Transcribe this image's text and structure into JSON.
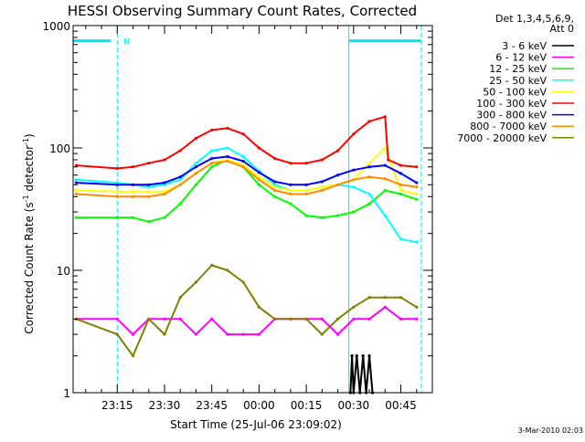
{
  "chart_data": {
    "type": "line",
    "title": "HESSI Observing Summary Count Rates, Corrected",
    "xlabel": "Start Time (25-Jul-06 23:09:02)",
    "ylabel_main": "Corrected Count Rate (s",
    "ylabel_exp1": "-1",
    "ylabel_mid": " detector",
    "ylabel_exp2": "-1",
    "ylabel_end": ")",
    "yscale": "log",
    "ylim": [
      1,
      1000
    ],
    "xlim_minutes": [
      -14,
      100
    ],
    "xticks": [
      {
        "label": "23:15",
        "min": 0
      },
      {
        "label": "23:30",
        "min": 15
      },
      {
        "label": "23:45",
        "min": 30
      },
      {
        "label": "00:00",
        "min": 45
      },
      {
        "label": "00:15",
        "min": 60
      },
      {
        "label": "00:30",
        "min": 75
      },
      {
        "label": "00:45",
        "min": 90
      }
    ],
    "yticks": [
      {
        "label": "1",
        "v": 1
      },
      {
        "label": "10",
        "v": 10
      },
      {
        "label": "100",
        "v": 100
      },
      {
        "label": "1000",
        "v": 1000
      }
    ],
    "legend_header": [
      "Det 1,3,4,5,6,9,",
      "Att 0"
    ],
    "legend_position": "right",
    "footer_date": "3-Mar-2010 02:03",
    "flag_label": "N",
    "vlines_minutes": [
      -14,
      0,
      73.5,
      96.5
    ],
    "flag_bars": [
      {
        "from": -14,
        "to": -2,
        "v": 750
      },
      {
        "from": 73.5,
        "to": 96.5,
        "v": 750
      }
    ],
    "series": [
      {
        "name": "3 - 6 keV",
        "color": "#000000",
        "x": [
          74,
          74.5,
          75,
          76,
          77,
          78,
          79,
          80,
          81
        ],
        "y": [
          1,
          2,
          1,
          2,
          1,
          2,
          1,
          2,
          1
        ]
      },
      {
        "name": "6 - 12 keV",
        "color": "#ff00ff",
        "x": [
          -13,
          0,
          5,
          10,
          15,
          20,
          25,
          30,
          35,
          40,
          45,
          50,
          55,
          60,
          65,
          70,
          75,
          80,
          85,
          90,
          95
        ],
        "y": [
          4,
          4,
          3,
          4,
          4,
          4,
          3,
          4,
          3,
          3,
          3,
          4,
          4,
          4,
          4,
          3,
          4,
          4,
          5,
          4,
          4
        ]
      },
      {
        "name": "12 - 25 keV",
        "color": "#00ff00",
        "x": [
          -13,
          0,
          5,
          10,
          15,
          20,
          25,
          30,
          35,
          40,
          45,
          50,
          55,
          60,
          65,
          70,
          75,
          80,
          85,
          90,
          95
        ],
        "y": [
          27,
          27,
          27,
          25,
          27,
          35,
          50,
          70,
          80,
          70,
          50,
          40,
          35,
          28,
          27,
          28,
          30,
          35,
          45,
          42,
          38
        ]
      },
      {
        "name": "25 - 50 keV",
        "color": "#00ffff",
        "x": [
          -13,
          0,
          5,
          10,
          15,
          20,
          25,
          30,
          35,
          40,
          45,
          50,
          55,
          60,
          65,
          70,
          75,
          80,
          85,
          90,
          95
        ],
        "y": [
          55,
          52,
          50,
          48,
          50,
          55,
          75,
          95,
          100,
          85,
          65,
          50,
          45,
          45,
          48,
          50,
          48,
          42,
          28,
          18,
          17
        ]
      },
      {
        "name": "50 - 100 keV",
        "color": "#ffff00",
        "x": [
          -13,
          0,
          5,
          10,
          15,
          20,
          25,
          30,
          35,
          40,
          45,
          50,
          55,
          60,
          65,
          70,
          75,
          80,
          85,
          90,
          95
        ],
        "y": [
          45,
          44,
          44,
          44,
          44,
          50,
          62,
          75,
          80,
          72,
          58,
          48,
          45,
          45,
          48,
          50,
          55,
          75,
          100,
          45,
          42
        ]
      },
      {
        "name": "100 - 300 keV",
        "color": "#ff0000",
        "x": [
          -13,
          0,
          5,
          10,
          15,
          20,
          25,
          30,
          35,
          40,
          45,
          50,
          55,
          60,
          65,
          70,
          75,
          80,
          85,
          86,
          90,
          95
        ],
        "y": [
          72,
          68,
          70,
          75,
          80,
          95,
          120,
          140,
          145,
          130,
          100,
          82,
          75,
          75,
          80,
          95,
          130,
          165,
          180,
          80,
          72,
          70
        ]
      },
      {
        "name": "300 - 800 keV",
        "color": "#0000ff",
        "x": [
          -13,
          0,
          5,
          10,
          15,
          20,
          25,
          30,
          35,
          40,
          45,
          50,
          55,
          60,
          65,
          70,
          75,
          80,
          85,
          90,
          95
        ],
        "y": [
          52,
          50,
          50,
          50,
          52,
          58,
          70,
          82,
          85,
          78,
          63,
          53,
          50,
          50,
          53,
          60,
          66,
          70,
          72,
          62,
          52
        ]
      },
      {
        "name": "800 - 7000 keV",
        "color": "#ff8c00",
        "x": [
          -13,
          0,
          5,
          10,
          15,
          20,
          25,
          30,
          35,
          40,
          45,
          50,
          55,
          60,
          65,
          70,
          75,
          80,
          85,
          90,
          95
        ],
        "y": [
          42,
          40,
          40,
          40,
          42,
          50,
          62,
          75,
          78,
          70,
          55,
          45,
          42,
          42,
          45,
          50,
          55,
          58,
          56,
          50,
          48
        ]
      },
      {
        "name": "7000 - 20000 keV",
        "color": "#808000",
        "x": [
          -13,
          0,
          5,
          10,
          15,
          20,
          25,
          30,
          35,
          40,
          45,
          50,
          55,
          60,
          65,
          70,
          75,
          80,
          85,
          90,
          95
        ],
        "y": [
          4,
          3,
          2,
          4,
          3,
          6,
          8,
          11,
          10,
          8,
          5,
          4,
          4,
          4,
          3,
          4,
          5,
          6,
          6,
          6,
          5
        ]
      }
    ]
  }
}
